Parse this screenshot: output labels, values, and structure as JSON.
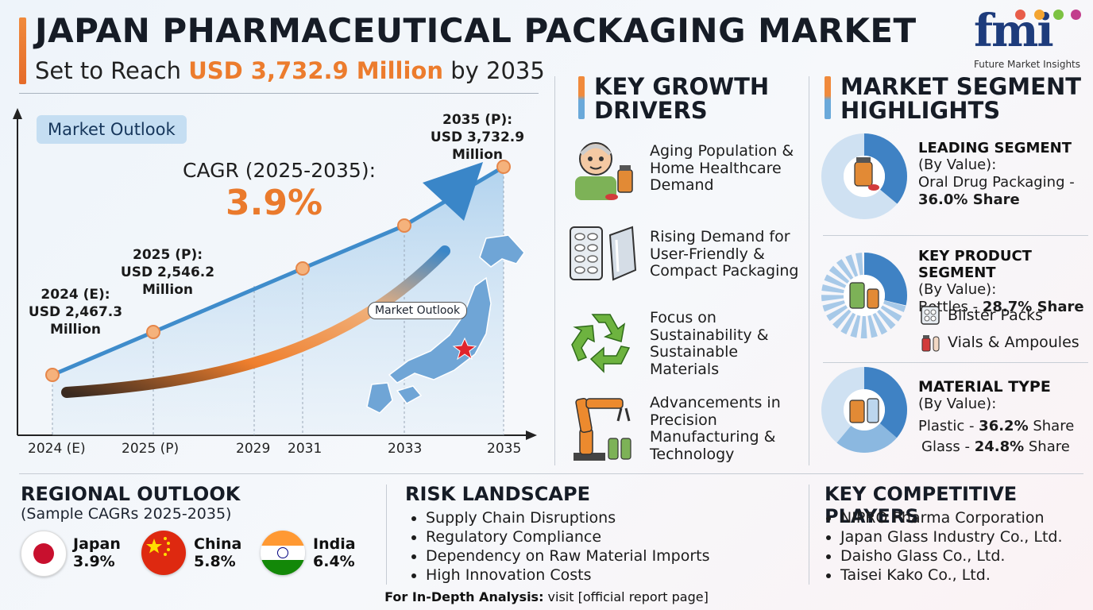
{
  "header": {
    "title": "JAPAN PHARMACEUTICAL PACKAGING MARKET",
    "subtitle_pre": "Set to Reach ",
    "subtitle_value": "USD 3,732.9 Million",
    "subtitle_post": " by 2035"
  },
  "logo": {
    "mark": "fmi",
    "name": "Future Market Insights",
    "dot_colors": [
      "#e85d4a",
      "#f3a431",
      "#7dc242",
      "#c23d8c"
    ]
  },
  "chart": {
    "pill": "Market Outlook",
    "cagr_label": "CAGR (2025-2035):",
    "cagr_value": "3.9%",
    "map_label": "Market Outlook",
    "callouts": {
      "y2024": [
        "2024 (E):",
        "USD 2,467.3",
        "Million"
      ],
      "y2025": [
        "2025 (P):",
        "USD 2,546.2",
        "Million"
      ],
      "y2035": [
        "2035 (P):",
        "USD 3,732.9 Million"
      ]
    },
    "colors": {
      "line": "#3f8ccb",
      "arrow_start": "#ef7f2d",
      "arrow_end": "#3a86c8",
      "point": "#f5b27c"
    }
  },
  "chart_data": {
    "type": "line",
    "x": [
      "2024 (E)",
      "2025 (P)",
      "2029",
      "2031",
      "2033",
      "2035"
    ],
    "values": [
      2467.3,
      2546.2,
      null,
      null,
      null,
      3732.9
    ],
    "ylabel": "",
    "xlabel": "",
    "unit": "USD Million"
  },
  "drivers": {
    "heading": [
      "KEY GROWTH",
      "DRIVERS"
    ],
    "items": [
      {
        "icon": "elderly-person-icon",
        "lines": [
          "Aging Population &",
          "Home Healthcare",
          "Demand"
        ]
      },
      {
        "icon": "blister-pack-icon",
        "lines": [
          "Rising Demand for",
          "User-Friendly &",
          "Compact Packaging"
        ]
      },
      {
        "icon": "recycle-icon",
        "lines": [
          "Focus on",
          "Sustainability &",
          "Sustainable",
          "Materials"
        ]
      },
      {
        "icon": "robot-arm-icon",
        "lines": [
          "Advancements in",
          "Precision",
          "Manufacturing &",
          "Technology"
        ]
      }
    ]
  },
  "segments": {
    "heading": [
      "MARKET SEGMENT",
      "HIGHLIGHTS"
    ],
    "leading": {
      "title": "LEADING SEGMENT",
      "by": "(By Value):",
      "line": "Oral Drug Packaging -",
      "share": "36.0% Share",
      "pct": 36.0
    },
    "product": {
      "title": "KEY PRODUCT SEGMENT",
      "by": "(By Value):",
      "pre": "Bottles - ",
      "share": "28.7% Share",
      "pct": 28.7,
      "others": [
        "Blister Packs",
        "Vials & Ampoules"
      ]
    },
    "material": {
      "title": "MATERIAL TYPE",
      "by": "(By Value):",
      "rows": [
        {
          "pre": "Plastic - ",
          "share": "36.2%",
          "post": " Share",
          "pct": 36.2
        },
        {
          "pre": "Glass - ",
          "share": "24.8%",
          "post": " Share",
          "pct": 24.8
        }
      ]
    }
  },
  "regional": {
    "heading": "REGIONAL OUTLOOK",
    "sub": "(Sample CAGRs 2025-2035)",
    "countries": [
      {
        "name": "Japan",
        "value": "3.9%"
      },
      {
        "name": "China",
        "value": "5.8%"
      },
      {
        "name": "India",
        "value": "6.4%"
      }
    ]
  },
  "risk": {
    "heading": "RISK LANDSCAPE",
    "items": [
      "Supply Chain Disruptions",
      "Regulatory Compliance",
      "Dependency on Raw Material Imports",
      "High Innovation Costs"
    ]
  },
  "players": {
    "heading": "KEY COMPETITIVE PLAYERS",
    "items": [
      "NIPRO Pharma Corporation",
      "Japan Glass Industry Co., Ltd.",
      "Daisho Glass Co., Ltd.",
      "Taisei Kako Co., Ltd."
    ]
  },
  "footer": {
    "bold": "For In-Depth Analysis:",
    "text": " visit [official report page]"
  }
}
